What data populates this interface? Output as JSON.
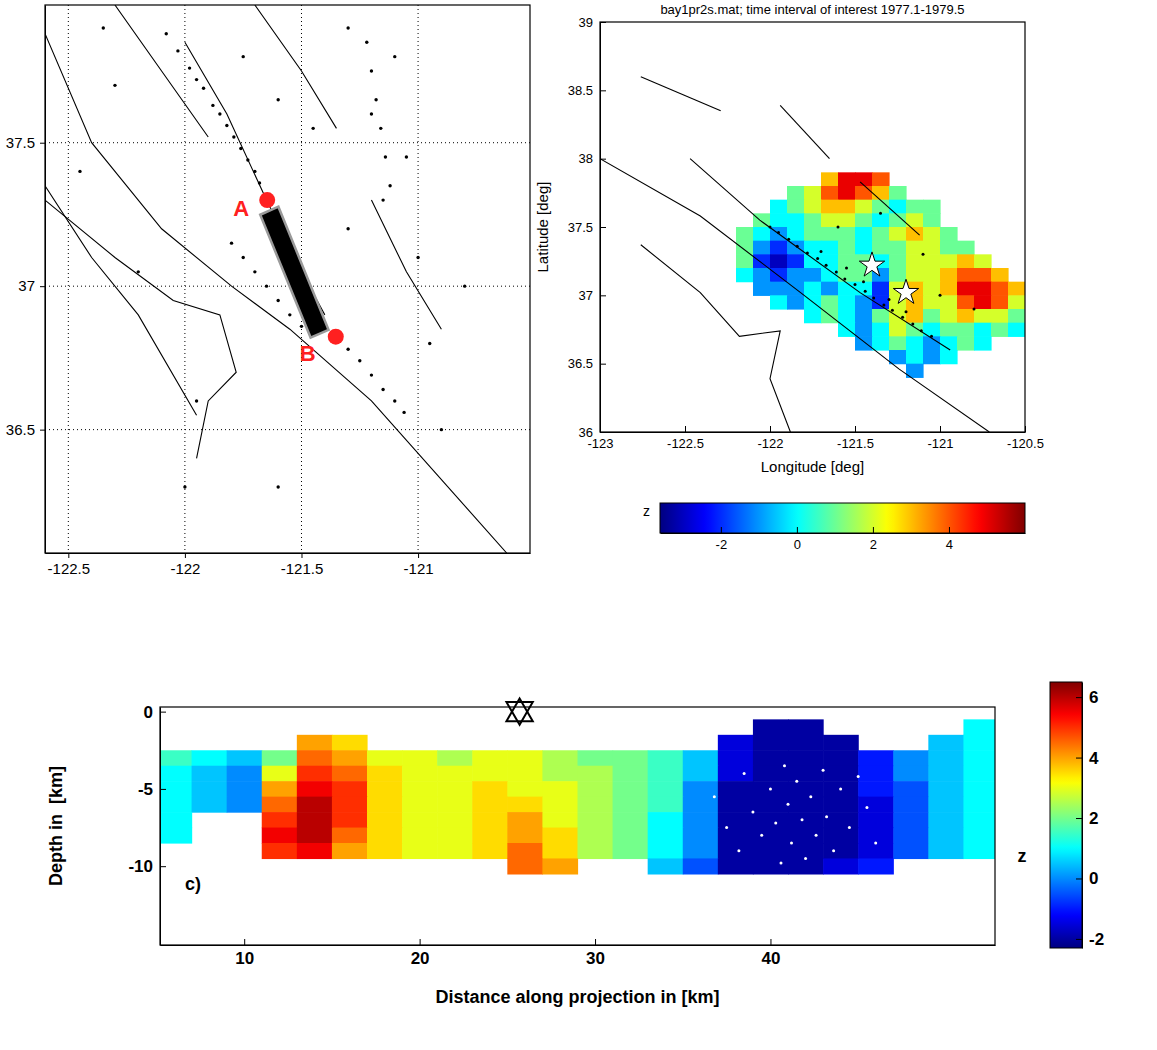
{
  "chart_data": [
    {
      "type": "map",
      "xlim": [
        -122.6,
        -120.52
      ],
      "ylim": [
        36.07,
        37.98
      ],
      "xticks": [
        -122.5,
        -122,
        -121.5,
        -121
      ],
      "yticks": [
        36.5,
        37,
        37.5
      ],
      "grid": true,
      "faults": [
        {
          "x": [
            -122.6,
            -122.4,
            -122.1,
            -121.8,
            -121.55,
            -121.2,
            -120.62
          ],
          "y": [
            37.88,
            37.5,
            37.2,
            37.0,
            36.85,
            36.6,
            36.07
          ]
        },
        {
          "x": [
            -122.3,
            -122.1,
            -121.9
          ],
          "y": [
            37.98,
            37.75,
            37.52
          ]
        },
        {
          "x": [
            -122.0,
            -121.82,
            -121.65,
            -121.5,
            -121.4
          ],
          "y": [
            37.85,
            37.6,
            37.3,
            37.05,
            36.9
          ]
        },
        {
          "x": [
            -121.7,
            -121.5,
            -121.35
          ],
          "y": [
            37.98,
            37.75,
            37.55
          ]
        },
        {
          "x": [
            -121.2,
            -121.05,
            -120.9
          ],
          "y": [
            37.3,
            37.05,
            36.85
          ]
        },
        {
          "x": [
            -122.6,
            -122.4,
            -122.2,
            -121.95
          ],
          "y": [
            37.35,
            37.1,
            36.9,
            36.55
          ]
        },
        {
          "x": [
            -122.6,
            -122.3,
            -122.05,
            -121.85,
            -121.78,
            -121.9,
            -121.95
          ],
          "y": [
            37.3,
            37.1,
            36.95,
            36.9,
            36.7,
            36.6,
            36.4
          ]
        }
      ],
      "events": {
        "color": "#000000",
        "x": [
          -122.08,
          -122.03,
          -121.98,
          -121.95,
          -121.92,
          -121.88,
          -121.85,
          -121.82,
          -121.79,
          -121.76,
          -121.73,
          -121.7,
          -121.68,
          -121.45,
          -121.42,
          -121.35,
          -121.3,
          -121.25,
          -121.2,
          -121.15,
          -121.1,
          -121.06,
          -121.8,
          -121.75,
          -121.7,
          -121.65,
          -121.6,
          -121.55,
          -121.5,
          -122.3,
          -122.45,
          -122.2,
          -121.95,
          -121.2,
          -121.05,
          -121.3,
          -121.1,
          -120.8,
          -120.9,
          -121.6,
          -122.0,
          -121.3,
          -121.15,
          -121.0,
          -120.95,
          -121.75,
          -122.35,
          -121.6,
          -121.45,
          -121.22,
          -121.2,
          -121.18,
          -121.16,
          -121.14,
          -121.12
        ],
        "y": [
          37.88,
          37.82,
          37.76,
          37.72,
          37.69,
          37.63,
          37.6,
          37.56,
          37.52,
          37.48,
          37.44,
          37.4,
          37.36,
          36.93,
          36.89,
          36.83,
          36.78,
          36.74,
          36.69,
          36.64,
          36.6,
          36.56,
          37.15,
          37.1,
          37.05,
          37.0,
          36.95,
          36.9,
          36.86,
          37.7,
          37.4,
          37.05,
          36.6,
          37.6,
          37.45,
          37.2,
          37.8,
          37.0,
          36.5,
          36.3,
          36.3,
          37.9,
          37.3,
          37.1,
          36.8,
          37.8,
          37.9,
          37.65,
          37.55,
          37.85,
          37.75,
          37.65,
          37.55,
          37.45,
          37.35
        ]
      },
      "profile": {
        "x": [
          -121.677,
          -121.599,
          -121.384,
          -121.461
        ],
        "y": [
          37.249,
          37.277,
          36.848,
          36.821
        ]
      },
      "profile_ends": {
        "labels": [
          "A",
          "B"
        ],
        "x": [
          -121.647,
          -121.353
        ],
        "y": [
          37.3,
          36.824
        ],
        "color": "#ff2020"
      }
    },
    {
      "type": "heatmap",
      "title": "bay1pr2s.mat; time interval of interest 1977.1-1979.5",
      "xlabel": "Longitude [deg]",
      "ylabel": "Latitude [deg]",
      "xlim": [
        -123,
        -120.5
      ],
      "ylim": [
        36,
        39
      ],
      "xticks": [
        -123,
        -122.5,
        -122,
        -121.5,
        -121,
        -120.5
      ],
      "yticks": [
        36,
        36.5,
        37,
        37.5,
        38,
        38.5,
        39
      ],
      "x": [
        -122.15,
        -122.05,
        -121.95,
        -121.85,
        -121.75,
        -121.65,
        -121.55,
        -121.45,
        -121.35,
        -121.25,
        -121.15,
        -121.05,
        -120.95,
        -120.85,
        -120.75,
        -120.65,
        -120.55
      ],
      "y": [
        37.85,
        37.75,
        37.65,
        37.55,
        37.45,
        37.35,
        37.25,
        37.15,
        37.05,
        36.95,
        36.85,
        36.75,
        36.65,
        36.55,
        36.45
      ],
      "cells": [
        [
          null,
          null,
          null,
          null,
          null,
          3,
          5,
          5,
          4,
          null,
          null,
          null,
          null,
          null,
          null,
          null,
          null
        ],
        [
          null,
          null,
          null,
          1,
          2,
          4,
          5,
          4,
          3,
          1,
          null,
          null,
          null,
          null,
          null,
          null,
          null
        ],
        [
          null,
          null,
          0,
          1,
          2,
          3,
          3,
          2,
          1,
          0,
          1,
          1,
          null,
          null,
          null,
          null,
          null
        ],
        [
          null,
          1,
          0,
          0,
          1,
          2,
          2,
          1,
          0,
          1,
          2,
          1,
          null,
          null,
          null,
          null,
          null
        ],
        [
          1,
          0,
          -1,
          0,
          1,
          1,
          1,
          0,
          1,
          2,
          3,
          2,
          1,
          null,
          null,
          null,
          null
        ],
        [
          1,
          -1,
          -2,
          -1,
          0,
          0,
          1,
          0,
          1,
          1,
          2,
          2,
          1,
          1,
          null,
          null,
          null
        ],
        [
          1,
          -2,
          -3,
          -2,
          0,
          0,
          1,
          1,
          0,
          1,
          2,
          2,
          2,
          3,
          2,
          null,
          null
        ],
        [
          0,
          -1,
          -2,
          -1,
          -1,
          0,
          1,
          1,
          -1,
          1,
          2,
          2,
          3,
          4,
          4,
          3,
          null
        ],
        [
          null,
          -1,
          -1,
          -1,
          0,
          -1,
          0,
          0,
          -2,
          2,
          3,
          2,
          3,
          5,
          5,
          4,
          3
        ],
        [
          null,
          null,
          0,
          -1,
          0,
          1,
          0,
          -1,
          -2,
          2,
          3,
          2,
          2,
          4,
          5,
          4,
          2
        ],
        [
          null,
          null,
          null,
          null,
          0,
          1,
          0,
          -1,
          1,
          2,
          3,
          1,
          2,
          3,
          2,
          2,
          1
        ],
        [
          null,
          null,
          null,
          null,
          null,
          null,
          0,
          -1,
          0,
          2,
          1,
          0,
          1,
          1,
          0,
          1,
          0
        ],
        [
          null,
          null,
          null,
          null,
          null,
          null,
          null,
          -1,
          0,
          1,
          0,
          -1,
          0,
          1,
          0,
          null,
          null
        ],
        [
          null,
          null,
          null,
          null,
          null,
          null,
          null,
          null,
          null,
          -1,
          0,
          -1,
          0,
          null,
          null,
          null,
          null
        ],
        [
          null,
          null,
          null,
          null,
          null,
          null,
          null,
          null,
          null,
          null,
          -1,
          null,
          null,
          null,
          null,
          null,
          null
        ]
      ],
      "colorbar": {
        "label": "z",
        "zlim": [
          -3.6,
          6.0
        ],
        "zticks": [
          -2,
          0,
          2,
          4
        ]
      },
      "faults": [
        {
          "x": [
            -123,
            -122.41,
            -121.82,
            -121.24,
            -120.71
          ],
          "y": [
            38.0,
            37.58,
            37.02,
            36.46,
            36.0
          ]
        },
        {
          "x": [
            -122.47,
            -122.06,
            -121.47,
            -120.94
          ],
          "y": [
            38.0,
            37.55,
            37.02,
            36.6
          ]
        },
        {
          "x": [
            -122.76,
            -122.29
          ],
          "y": [
            38.6,
            38.35
          ]
        },
        {
          "x": [
            -121.94,
            -121.65
          ],
          "y": [
            38.39,
            38.0
          ]
        },
        {
          "x": [
            -122.76,
            -122.41,
            -122.18,
            -121.94,
            -122.0,
            -121.88
          ],
          "y": [
            37.37,
            37.02,
            36.7,
            36.74,
            36.39,
            36.0
          ]
        },
        {
          "x": [
            -121.47,
            -121.12
          ],
          "y": [
            37.83,
            37.44
          ]
        }
      ],
      "events": {
        "color": "#000000",
        "x": [
          -122.0,
          -121.95,
          -121.89,
          -121.84,
          -121.78,
          -121.72,
          -121.67,
          -121.61,
          -121.56,
          -121.5,
          -121.44,
          -121.39,
          -121.33,
          -121.28,
          -121.22,
          -121.16,
          -121.11,
          -121.05,
          -121.7,
          -121.55,
          -121.45,
          -121.3,
          -121.2,
          -121.6,
          -121.35,
          -121.1,
          -121.0,
          -120.8
        ],
        "y": [
          37.5,
          37.46,
          37.41,
          37.36,
          37.31,
          37.27,
          37.22,
          37.17,
          37.12,
          37.08,
          37.03,
          36.98,
          36.93,
          36.89,
          36.84,
          36.79,
          36.74,
          36.7,
          37.32,
          37.2,
          37.1,
          36.97,
          36.88,
          37.5,
          37.6,
          37.3,
          37.0,
          36.9
        ]
      },
      "stars": {
        "x": [
          -121.4,
          -121.2
        ],
        "y": [
          37.22,
          37.02
        ]
      }
    },
    {
      "type": "heatmap",
      "xlabel": "Distance along projection in [km]",
      "ylabel": "Depth in  [km]",
      "panel_label": "c)",
      "xlim": [
        5.2,
        52.8
      ],
      "ylim": [
        -15.1,
        0.3
      ],
      "xticks": [
        10,
        20,
        30,
        40
      ],
      "yticks": [
        -10,
        -5,
        0
      ],
      "x": [
        6,
        8,
        10,
        12,
        14,
        16,
        18,
        20,
        22,
        24,
        26,
        28,
        30,
        32,
        34,
        36,
        38,
        40,
        42,
        44,
        46,
        48,
        50,
        52
      ],
      "y": [
        -1,
        -2,
        -3,
        -4,
        -5,
        -6,
        -7,
        -8,
        -9,
        -10
      ],
      "cells": [
        [
          null,
          null,
          null,
          null,
          null,
          null,
          null,
          null,
          null,
          null,
          null,
          null,
          null,
          null,
          null,
          null,
          null,
          -2,
          -2,
          null,
          null,
          null,
          null,
          1
        ],
        [
          null,
          null,
          null,
          null,
          4,
          3.5,
          null,
          null,
          null,
          null,
          null,
          null,
          null,
          null,
          null,
          null,
          -1.5,
          -2,
          -2,
          -2,
          null,
          null,
          0.5,
          1
        ],
        [
          1.5,
          1,
          0.5,
          2,
          4.5,
          4,
          3,
          3,
          2.5,
          3,
          3,
          2.5,
          2,
          2,
          1.5,
          0.5,
          -1.5,
          -2,
          -2,
          -2,
          -1,
          0,
          0.5,
          1
        ],
        [
          1,
          0.5,
          0,
          3,
          5,
          4.5,
          3.5,
          3,
          3,
          3,
          3,
          2.5,
          2.5,
          2,
          1.5,
          0.5,
          -1.5,
          -2,
          -2,
          -2,
          -1,
          0,
          0.5,
          1
        ],
        [
          1,
          0.5,
          0,
          4,
          5.5,
          5,
          3.5,
          3,
          3,
          3.5,
          3,
          3,
          2.5,
          2,
          1.5,
          0,
          -2,
          -2,
          -2,
          -2,
          -1,
          -0.5,
          0.5,
          1
        ],
        [
          1,
          0.5,
          0,
          4.5,
          6,
          5,
          3.5,
          3,
          3,
          3.5,
          3.5,
          3,
          2.5,
          2,
          1.5,
          0,
          -2,
          -2,
          -2,
          -2,
          -1.5,
          -0.5,
          0.5,
          1
        ],
        [
          1,
          null,
          null,
          5,
          6,
          5,
          3.5,
          3,
          3,
          3.5,
          4,
          3,
          2.5,
          2,
          1,
          0,
          -2,
          -2,
          -2,
          -2,
          -1.5,
          -0.5,
          0.5,
          1
        ],
        [
          1,
          null,
          null,
          5.5,
          6,
          4.5,
          3.5,
          3,
          3,
          3.5,
          4,
          3.5,
          2.5,
          2,
          1,
          0,
          -2,
          -2,
          -2,
          -2,
          -1.5,
          -0.5,
          0.5,
          1
        ],
        [
          null,
          null,
          null,
          5,
          5.5,
          4,
          3.5,
          3,
          3,
          3.5,
          4.5,
          3.5,
          2.5,
          2,
          1,
          0,
          -2,
          -2,
          -2,
          -2,
          -1.5,
          -0.5,
          0.5,
          1
        ],
        [
          null,
          null,
          null,
          null,
          null,
          null,
          null,
          null,
          null,
          null,
          4.5,
          4,
          null,
          null,
          0.5,
          -0.5,
          -2,
          -2,
          -2,
          -1.5,
          -1,
          null,
          null,
          null
        ]
      ],
      "colorbar": {
        "label": "z",
        "zlim": [
          -2.3,
          6.5
        ],
        "zticks": [
          -2,
          0,
          2,
          4,
          6
        ]
      },
      "events": {
        "color": "#ffffff",
        "x": [
          38.5,
          39,
          39.5,
          40,
          40.3,
          40.8,
          41,
          41.2,
          41.5,
          41.8,
          42,
          42.3,
          42.6,
          43,
          43.2,
          43.6,
          44,
          44.5,
          45,
          45.5,
          37.5,
          38.2,
          36.8,
          46,
          40.6
        ],
        "y": [
          -4,
          -6.5,
          -8,
          -5,
          -7.2,
          -3.5,
          -6,
          -8.5,
          -4.5,
          -7,
          -9.5,
          -5.5,
          -8,
          -3.8,
          -6.8,
          -9,
          -5,
          -7.5,
          -4.2,
          -6.2,
          -7.5,
          -9,
          -5.5,
          -8.5,
          -9.8
        ]
      },
      "stars": {
        "x": [
          25.7
        ],
        "y": [
          0
        ]
      }
    }
  ]
}
